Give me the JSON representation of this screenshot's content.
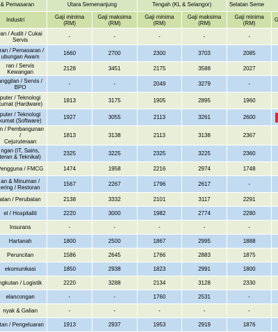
{
  "header": {
    "group1": "n & Pemasaran",
    "group2": "Utara Semenanjung",
    "group3": "Tengah (KL & Selangor)",
    "group4": "Selatan Seme",
    "industry_label": "Industri",
    "min_label": "Gaji minima",
    "max_label": "Gaji maksima",
    "unit": "(RM)",
    "last_fragment": "Ga"
  },
  "rows": [
    {
      "industry": "ran / Audit / Cukai\nServis",
      "cells": [
        "-",
        "-",
        "-",
        "-",
        "-"
      ],
      "band": "a",
      "tall": true
    },
    {
      "industry": "uran / Pemasaran /\nubungan Awam",
      "cells": [
        "1660",
        "2700",
        "2300",
        "3703",
        "2085"
      ],
      "band": "b",
      "tall": true
    },
    {
      "industry": "ran / Servis Kewangan",
      "cells": [
        "2128",
        "3451",
        "2175",
        "3588",
        "2027"
      ],
      "band": "a",
      "tall": false
    },
    {
      "industry": "anggilan / Servis /\nBPO",
      "cells": [
        "-",
        "-",
        "2049",
        "3279",
        "-"
      ],
      "band": "b",
      "tall": true
    },
    {
      "industry": "puter / Teknologi\nkumat (Hardware)",
      "cells": [
        "1813",
        "3175",
        "1905",
        "2895",
        "1960"
      ],
      "band": "a",
      "tall": true
    },
    {
      "industry": "puter / Teknologi\nkumat (Software)",
      "cells": [
        "1927",
        "3055",
        "2113",
        "3261",
        "2600"
      ],
      "band": "b",
      "tall": true,
      "marker": true
    },
    {
      "industry": "an / Pembangunan /\nCejuruteraan",
      "cells": [
        "1813",
        "3138",
        "2113",
        "3138",
        "2367"
      ],
      "band": "a",
      "tall": true
    },
    {
      "industry": "ngan (IT, Sains,\nteran & Teknikal)",
      "cells": [
        "2325",
        "3225",
        "2325",
        "3225",
        "2360"
      ],
      "band": "b",
      "tall": true
    },
    {
      "industry": "Pengguna / FMCG",
      "cells": [
        "1474",
        "1958",
        "2216",
        "2974",
        "1748"
      ],
      "band": "a",
      "tall": false
    },
    {
      "industry": "an & Minuman /\nering / Restoran",
      "cells": [
        "1567",
        "2267",
        "1796",
        "2617",
        "-"
      ],
      "band": "b",
      "tall": true
    },
    {
      "industry": "atan / Perubatan",
      "cells": [
        "2138",
        "3332",
        "2101",
        "3117",
        "2291"
      ],
      "band": "a",
      "tall": false
    },
    {
      "industry": "el / Hospitaliti",
      "cells": [
        "2220",
        "3000",
        "1982",
        "2774",
        "2280"
      ],
      "band": "b",
      "tall": false
    },
    {
      "industry": "Insurans",
      "cells": [
        "-",
        "-",
        "-",
        "-",
        "-"
      ],
      "band": "a",
      "tall": false
    },
    {
      "industry": "Hartanah",
      "cells": [
        "1800",
        "2500",
        "1867",
        "2995",
        "1888"
      ],
      "band": "b",
      "tall": false
    },
    {
      "industry": "Peruncitan",
      "cells": [
        "1586",
        "2645",
        "1766",
        "2883",
        "1875"
      ],
      "band": "a",
      "tall": false
    },
    {
      "industry": "ekomunikasi",
      "cells": [
        "1850",
        "2938",
        "1823",
        "2991",
        "1800"
      ],
      "band": "b",
      "tall": false
    },
    {
      "industry": "ngkutan / Logistik",
      "cells": [
        "2220",
        "3288",
        "2134",
        "3128",
        "2330"
      ],
      "band": "a",
      "tall": false
    },
    {
      "industry": "elancongan",
      "cells": [
        "-",
        "-",
        "1760",
        "2531",
        "-"
      ],
      "band": "b",
      "tall": false
    },
    {
      "industry": "nyak & Galian",
      "cells": [
        "-",
        "-",
        "-",
        "-",
        "-"
      ],
      "band": "a",
      "tall": false
    },
    {
      "industry": "atan / Pengeluaran",
      "cells": [
        "1913",
        "2937",
        "1953",
        "2919",
        "1876"
      ],
      "band": "b",
      "tall": false
    }
  ]
}
